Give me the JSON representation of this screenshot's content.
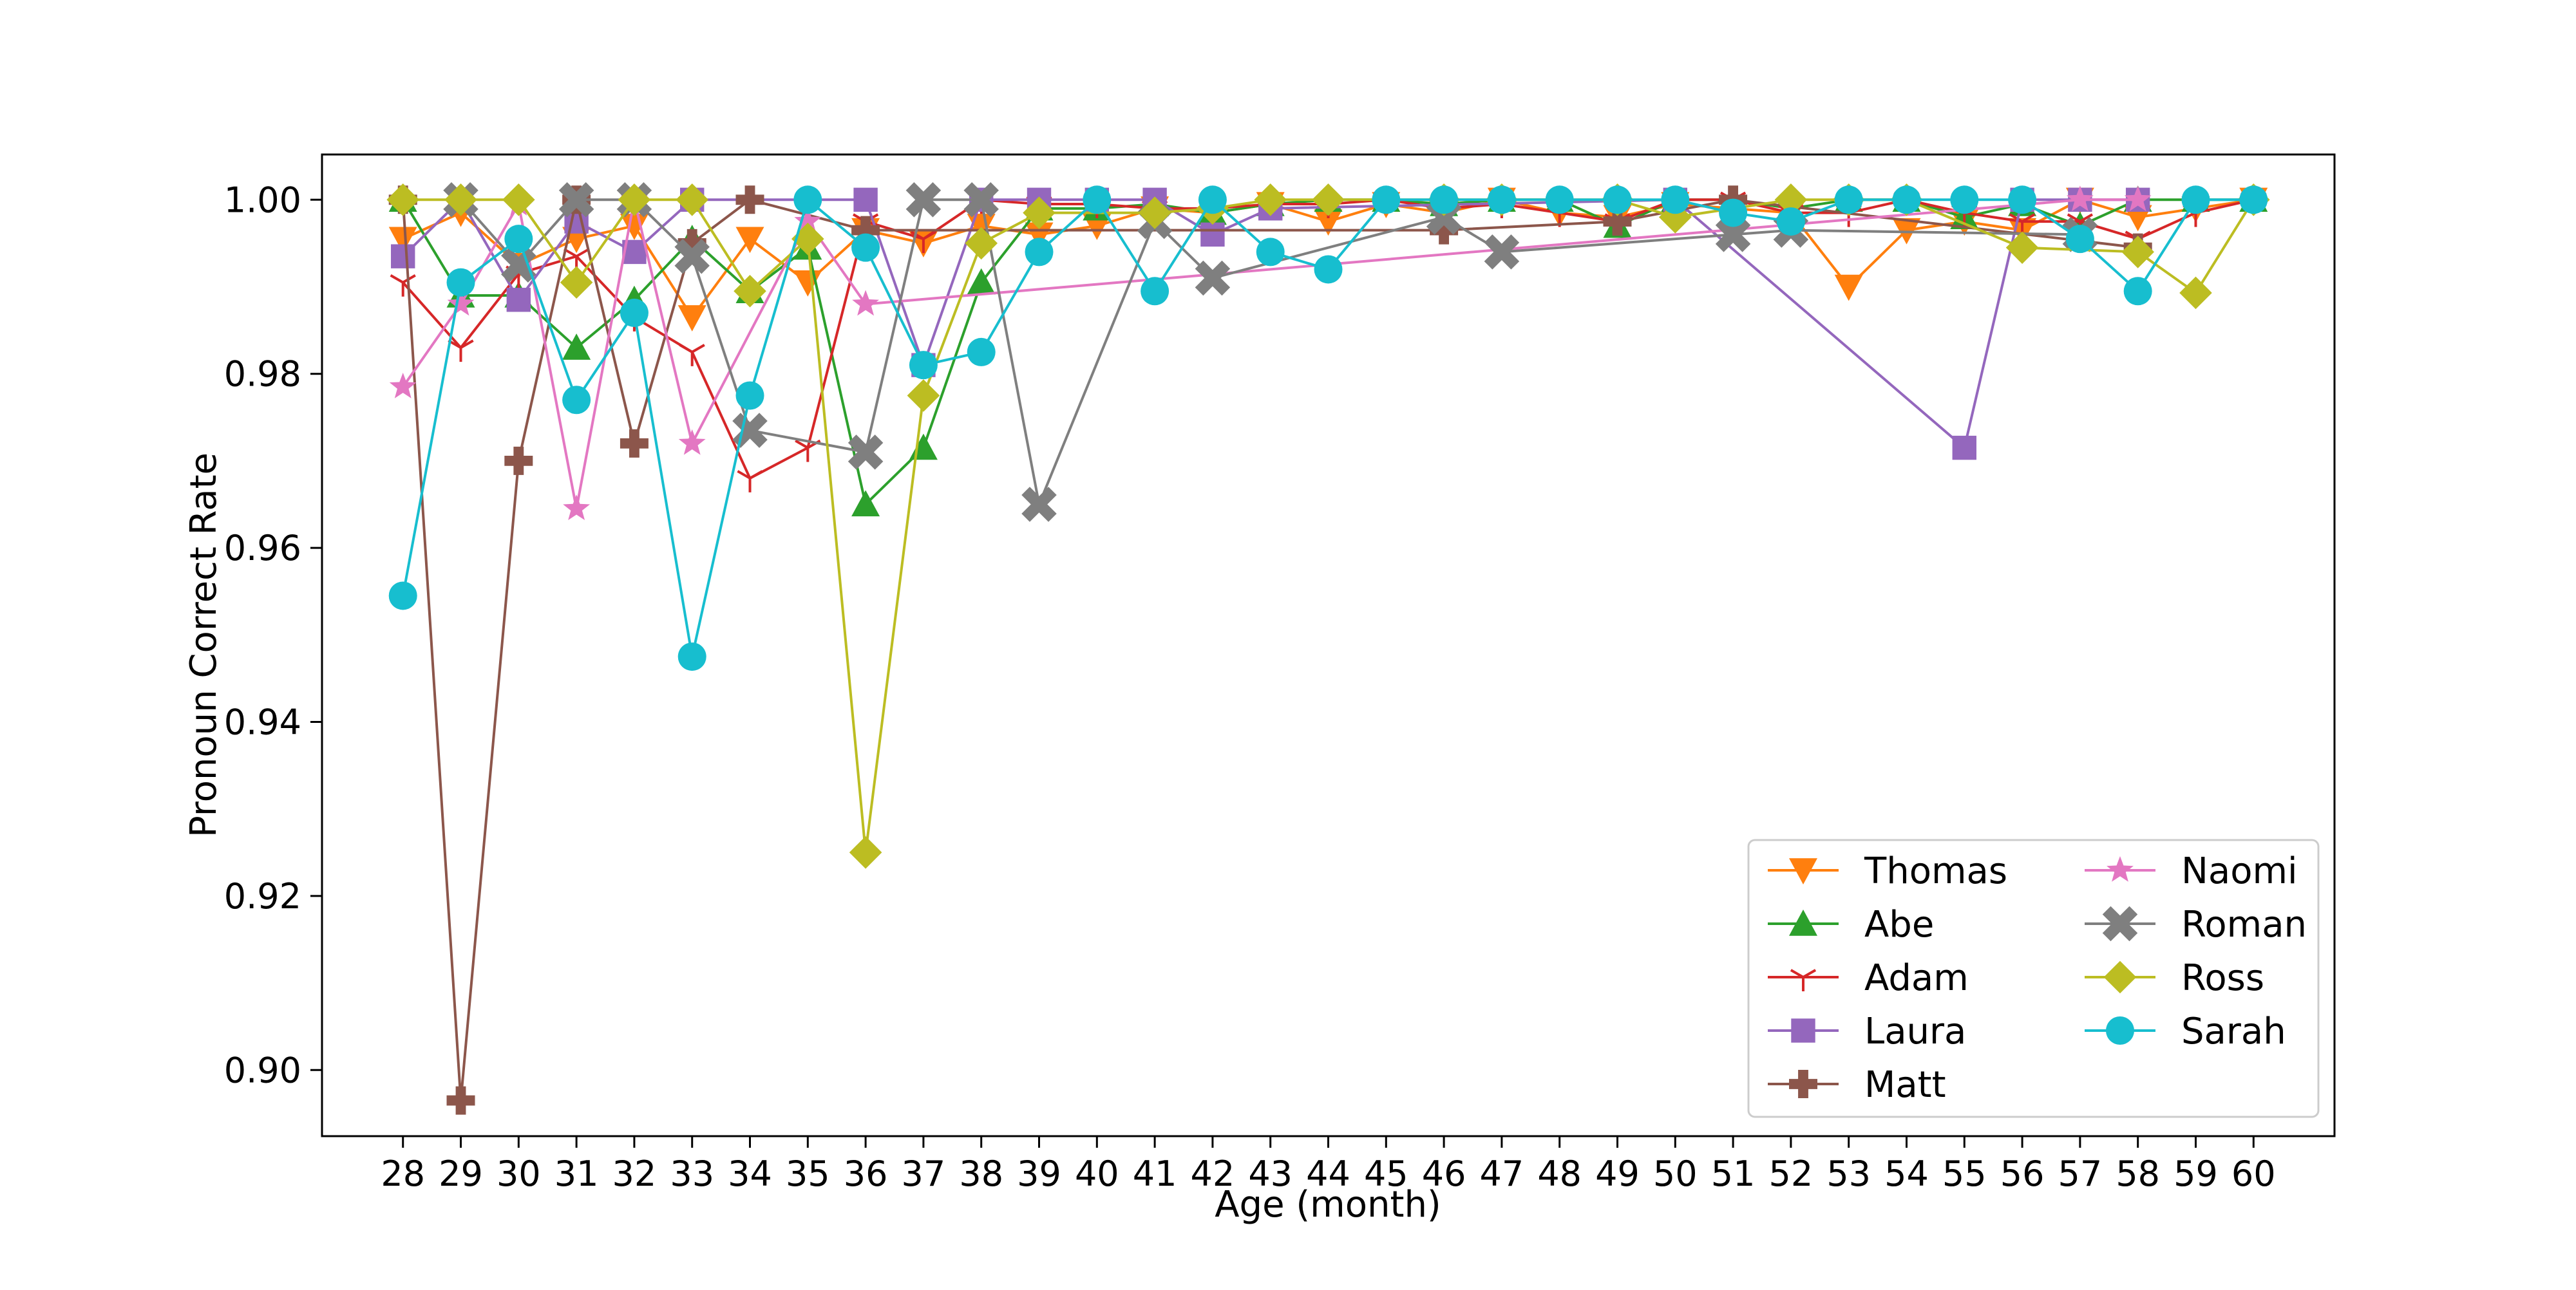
{
  "chart_data": {
    "type": "line",
    "xlabel": "Age (month)",
    "ylabel": "Pronoun Correct Rate",
    "x": [
      28,
      29,
      30,
      31,
      32,
      33,
      34,
      35,
      36,
      37,
      38,
      39,
      40,
      41,
      42,
      43,
      44,
      45,
      46,
      47,
      48,
      49,
      50,
      51,
      52,
      53,
      54,
      55,
      56,
      57,
      58,
      59,
      60
    ],
    "xlim": [
      26.6,
      61.4
    ],
    "ylim": [
      0.8924,
      1.0052
    ],
    "yticks": [
      0.9,
      0.92,
      0.94,
      0.96,
      0.98,
      1.0
    ],
    "ytick_labels": [
      "0.90",
      "0.92",
      "0.94",
      "0.96",
      "0.98",
      "1.00"
    ],
    "grid": false,
    "legend": {
      "placement": "lower-right",
      "columns": 2
    },
    "series": [
      {
        "name": "Thomas",
        "color": "#ff7f0e",
        "marker": "triangle-down",
        "values": [
          0.9955,
          0.9985,
          0.9925,
          0.9955,
          0.997,
          0.9865,
          0.9955,
          0.9905,
          0.9965,
          0.995,
          0.997,
          0.996,
          0.997,
          0.999,
          0.9985,
          0.9995,
          0.9975,
          0.9995,
          0.9985,
          1.0,
          0.9985,
          0.998,
          0.9995,
          0.999,
          0.9985,
          0.99,
          0.9965,
          0.9975,
          0.9965,
          1.0,
          0.998,
          0.999,
          1.0
        ]
      },
      {
        "name": "Abe",
        "color": "#2ca02c",
        "marker": "triangle-up",
        "values": [
          1.0,
          0.989,
          0.989,
          0.983,
          0.9885,
          0.9955,
          0.9895,
          0.9945,
          0.965,
          0.9715,
          0.9905,
          0.999,
          0.999,
          0.9995,
          0.9985,
          0.9995,
          1.0,
          1.0,
          0.9995,
          1.0,
          1.0,
          0.997,
          1.0,
          1.0,
          0.999,
          1.0,
          1.0,
          0.998,
          0.9995,
          0.997,
          1.0,
          1.0,
          1.0
        ]
      },
      {
        "name": "Adam",
        "color": "#d62728",
        "marker": "tri-down",
        "values": [
          0.9905,
          0.983,
          0.9915,
          0.9935,
          0.9865,
          0.9825,
          0.968,
          0.9715,
          0.9975,
          0.9955,
          1.0,
          0.9995,
          0.9995,
          0.999,
          0.999,
          0.9995,
          0.9995,
          1.0,
          0.999,
          0.9995,
          0.9985,
          0.9975,
          1.0,
          1.0,
          0.9985,
          0.9985,
          1.0,
          0.9985,
          0.9975,
          0.9975,
          0.9955,
          0.9985,
          1.0
        ]
      },
      {
        "name": "Laura",
        "color": "#9467bd",
        "marker": "square",
        "values": [
          0.9935,
          1.0,
          0.9885,
          0.9975,
          0.994,
          1.0,
          null,
          null,
          1.0,
          0.981,
          1.0,
          1.0,
          1.0,
          1.0,
          0.996,
          0.999,
          null,
          null,
          null,
          null,
          null,
          null,
          1.0,
          null,
          null,
          null,
          null,
          0.9715,
          1.0,
          1.0,
          1.0,
          null,
          null
        ]
      },
      {
        "name": "Matt",
        "color": "#8c564b",
        "marker": "plus-filled",
        "values": [
          1.0,
          0.8965,
          0.97,
          1.0,
          0.972,
          0.995,
          1.0,
          null,
          0.9965,
          null,
          null,
          null,
          null,
          null,
          null,
          null,
          null,
          null,
          0.9965,
          null,
          null,
          0.9975,
          null,
          1.0,
          null,
          null,
          null,
          null,
          null,
          null,
          0.9945,
          null,
          null
        ]
      },
      {
        "name": "Naomi",
        "color": "#e377c2",
        "marker": "star",
        "values": [
          0.9785,
          0.988,
          0.9995,
          0.9645,
          1.0,
          0.972,
          null,
          0.9975,
          0.988,
          null,
          null,
          null,
          null,
          null,
          null,
          null,
          null,
          null,
          null,
          null,
          null,
          null,
          null,
          null,
          null,
          null,
          null,
          null,
          null,
          1.0,
          1.0,
          null,
          null
        ]
      },
      {
        "name": "Roman",
        "color": "#7f7f7f",
        "marker": "x-filled",
        "values": [
          null,
          1.0,
          0.9925,
          1.0,
          1.0,
          0.9935,
          0.9735,
          null,
          0.971,
          1.0,
          1.0,
          0.965,
          null,
          0.9975,
          0.991,
          null,
          null,
          null,
          0.998,
          0.994,
          null,
          null,
          null,
          0.996,
          0.9965,
          null,
          null,
          null,
          null,
          0.996,
          null,
          null,
          null
        ]
      },
      {
        "name": "Ross",
        "color": "#bcbd22",
        "marker": "diamond",
        "values": [
          1.0,
          1.0,
          1.0,
          0.9905,
          1.0,
          1.0,
          0.9895,
          0.9955,
          0.925,
          0.9775,
          0.995,
          0.9985,
          null,
          0.9985,
          0.999,
          1.0,
          1.0,
          null,
          1.0,
          1.0,
          null,
          1.0,
          0.998,
          null,
          1.0,
          1.0,
          1.0,
          null,
          0.9945,
          null,
          0.994,
          0.9893,
          1.0
        ]
      },
      {
        "name": "Sarah",
        "color": "#17becf",
        "marker": "circle",
        "values": [
          0.9545,
          0.9905,
          0.9955,
          0.977,
          0.987,
          0.9475,
          0.9775,
          1.0,
          0.9945,
          0.981,
          0.9825,
          0.994,
          1.0,
          0.9895,
          1.0,
          0.994,
          0.992,
          1.0,
          1.0,
          1.0,
          1.0,
          1.0,
          1.0,
          0.9985,
          0.9975,
          1.0,
          1.0,
          1.0,
          1.0,
          0.9955,
          0.9895,
          1.0,
          1.0
        ]
      }
    ]
  }
}
